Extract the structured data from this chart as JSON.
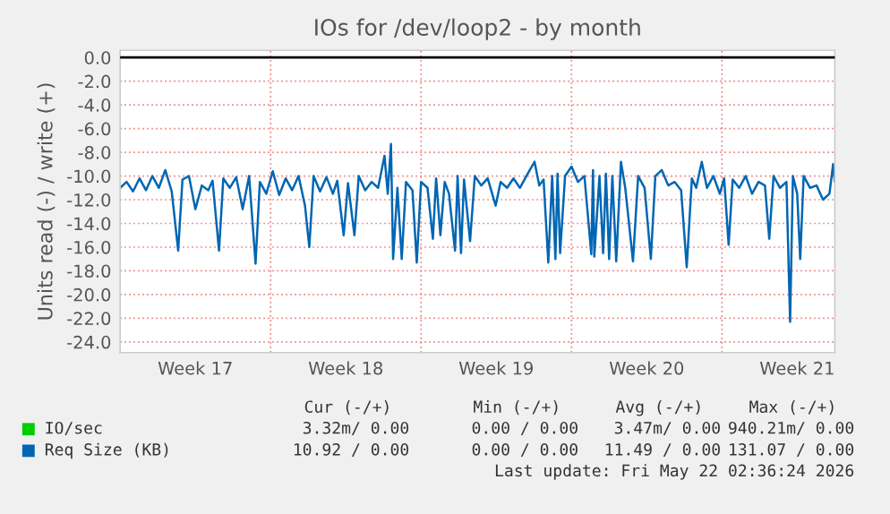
{
  "chart_data": {
    "type": "line",
    "title": "IOs for /dev/loop2 - by month",
    "ylabel": "Units read (-) / write (+)",
    "xlim": [
      "2026-04-20T00:00",
      "2026-05-23T06:00"
    ],
    "xticks": [
      {
        "value": "2026-04-20",
        "label": null
      },
      {
        "value": "2026-04-23T12:00",
        "label": "Week 17"
      },
      {
        "value": "2026-04-27",
        "label": null
      },
      {
        "value": "2026-04-30T12:00",
        "label": "Week 18"
      },
      {
        "value": "2026-05-04",
        "label": null
      },
      {
        "value": "2026-05-07T12:00",
        "label": "Week 19"
      },
      {
        "value": "2026-05-11",
        "label": null
      },
      {
        "value": "2026-05-14T12:00",
        "label": "Week 20"
      },
      {
        "value": "2026-05-18",
        "label": null
      },
      {
        "value": "2026-05-21T12:00",
        "label": "Week 21"
      }
    ],
    "ylim": [
      -24.9,
      0.6
    ],
    "yticks": [
      {
        "value": 0,
        "label": "0.0"
      },
      {
        "value": -2,
        "label": "-2.0"
      },
      {
        "value": -4,
        "label": "-4.0"
      },
      {
        "value": -6,
        "label": "-6.0"
      },
      {
        "value": -8,
        "label": "-8.0"
      },
      {
        "value": -10,
        "label": "-10.0"
      },
      {
        "value": -12,
        "label": "-12.0"
      },
      {
        "value": -14,
        "label": "-14.0"
      },
      {
        "value": -16,
        "label": "-16.0"
      },
      {
        "value": -18,
        "label": "-18.0"
      },
      {
        "value": -20,
        "label": "-20.0"
      },
      {
        "value": -22,
        "label": "-22.0"
      },
      {
        "value": -24,
        "label": "-24.0"
      }
    ],
    "grid": true,
    "legend": "bottom",
    "ref_lines": [
      {
        "axis": "y",
        "value": 0,
        "label": null,
        "color": "#000000"
      }
    ],
    "series": [
      {
        "name": "IO/sec",
        "color": "#00cc00"
      },
      {
        "name": "Req Size (KB)",
        "color": "#0066b3",
        "x": [
          "2026-04-20T00:00",
          "2026-04-20T07:12",
          "2026-04-20T14:24",
          "2026-04-20T21:36",
          "2026-04-21T04:48",
          "2026-04-21T12:00",
          "2026-04-21T19:12",
          "2026-04-22T02:24",
          "2026-04-22T09:36",
          "2026-04-22T16:48",
          "2026-04-22T21:36",
          "2026-04-23T04:48",
          "2026-04-23T12:00",
          "2026-04-23T19:12",
          "2026-04-24T02:24",
          "2026-04-24T07:12",
          "2026-04-24T14:24",
          "2026-04-24T19:12",
          "2026-04-25T02:24",
          "2026-04-25T09:36",
          "2026-04-25T16:48",
          "2026-04-26T00:00",
          "2026-04-26T07:12",
          "2026-04-26T12:00",
          "2026-04-26T19:12",
          "2026-04-27T02:24",
          "2026-04-27T09:36",
          "2026-04-27T16:48",
          "2026-04-28T00:00",
          "2026-04-28T07:12",
          "2026-04-28T14:24",
          "2026-04-28T19:12",
          "2026-04-29T00:00",
          "2026-04-29T07:12",
          "2026-04-29T14:24",
          "2026-04-29T21:36",
          "2026-04-30T02:24",
          "2026-04-30T09:36",
          "2026-04-30T14:24",
          "2026-04-30T21:36",
          "2026-05-01T02:24",
          "2026-05-01T09:36",
          "2026-05-01T16:48",
          "2026-05-02T00:00",
          "2026-05-02T07:12",
          "2026-05-02T10:48",
          "2026-05-02T14:24",
          "2026-05-02T16:48",
          "2026-05-02T21:36",
          "2026-05-03T02:24",
          "2026-05-03T07:12",
          "2026-05-03T14:24",
          "2026-05-03T19:12",
          "2026-05-04T00:00",
          "2026-05-04T07:12",
          "2026-05-04T13:12",
          "2026-05-04T16:48",
          "2026-05-04T21:36",
          "2026-05-05T02:24",
          "2026-05-05T07:12",
          "2026-05-05T13:55",
          "2026-05-05T16:48",
          "2026-05-05T20:38",
          "2026-05-06T00:00",
          "2026-05-06T06:43",
          "2026-05-06T12:00",
          "2026-05-06T19:12",
          "2026-05-07T02:24",
          "2026-05-07T11:17",
          "2026-05-07T16:48",
          "2026-05-08T00:00",
          "2026-05-08T07:12",
          "2026-05-08T14:24",
          "2026-05-08T21:36",
          "2026-05-09T06:43",
          "2026-05-09T12:00",
          "2026-05-09T16:48",
          "2026-05-09T22:05",
          "2026-05-10T02:24",
          "2026-05-10T06:00",
          "2026-05-10T08:24",
          "2026-05-10T11:17",
          "2026-05-10T16:48",
          "2026-05-11T00:00",
          "2026-05-11T07:12",
          "2026-05-11T14:24",
          "2026-05-11T22:05",
          "2026-05-12T00:00",
          "2026-05-12T01:26",
          "2026-05-12T07:12",
          "2026-05-12T11:17",
          "2026-05-12T14:24",
          "2026-05-12T18:00",
          "2026-05-12T21:36",
          "2026-05-13T01:55",
          "2026-05-13T07:12",
          "2026-05-13T12:00",
          "2026-05-13T20:38",
          "2026-05-14T02:24",
          "2026-05-14T09:36",
          "2026-05-14T16:34",
          "2026-05-14T21:36",
          "2026-05-15T04:48",
          "2026-05-15T12:00",
          "2026-05-15T19:12",
          "2026-05-16T02:24",
          "2026-05-16T08:38",
          "2026-05-16T14:24",
          "2026-05-16T19:12",
          "2026-05-17T01:26",
          "2026-05-17T07:12",
          "2026-05-17T14:24",
          "2026-05-17T21:36",
          "2026-05-18T02:24",
          "2026-05-18T07:26",
          "2026-05-18T12:00",
          "2026-05-18T19:12",
          "2026-05-19T02:24",
          "2026-05-19T09:36",
          "2026-05-19T16:48",
          "2026-05-20T00:00",
          "2026-05-20T04:48",
          "2026-05-20T09:36",
          "2026-05-20T16:48",
          "2026-05-21T00:00",
          "2026-05-21T04:05",
          "2026-05-21T07:12",
          "2026-05-21T12:00",
          "2026-05-21T15:22",
          "2026-05-21T19:12",
          "2026-05-22T02:24",
          "2026-05-22T09:36",
          "2026-05-22T16:48",
          "2026-05-23T00:00",
          "2026-05-23T04:05",
          "2026-05-23T06:00"
        ],
        "values": [
          -11,
          -10.5,
          -11.3,
          -10.2,
          -11.2,
          -10.0,
          -11.0,
          -9.5,
          -11.3,
          -16.3,
          -10.3,
          -10.0,
          -12.8,
          -10.8,
          -11.2,
          -10.4,
          -16.3,
          -10.2,
          -11.0,
          -10.1,
          -12.8,
          -10.0,
          -17.4,
          -10.5,
          -11.5,
          -9.6,
          -11.6,
          -10.2,
          -11.2,
          -10.0,
          -12.5,
          -16.0,
          -10.0,
          -11.3,
          -10.1,
          -11.5,
          -10.4,
          -15.0,
          -10.6,
          -15.0,
          -10.0,
          -11.2,
          -10.5,
          -11.0,
          -8.3,
          -11.5,
          -7.3,
          -17.0,
          -11.0,
          -17.0,
          -10.5,
          -11.2,
          -17.3,
          -10.5,
          -11.0,
          -15.3,
          -10.2,
          -15.0,
          -10.5,
          -11.5,
          -16.3,
          -10.0,
          -16.5,
          -10.3,
          -15.5,
          -10.0,
          -10.8,
          -10.2,
          -12.5,
          -10.5,
          -11.0,
          -10.2,
          -11.0,
          -10.0,
          -8.8,
          -10.8,
          -10.3,
          -17.3,
          -10.0,
          -17.0,
          -9.8,
          -16.5,
          -10.0,
          -9.2,
          -10.5,
          -10.0,
          -16.6,
          -9.5,
          -16.8,
          -10.0,
          -16.5,
          -9.8,
          -17.0,
          -10.0,
          -17.2,
          -8.8,
          -11.0,
          -17.2,
          -10.0,
          -11.0,
          -17.0,
          -10.0,
          -9.5,
          -10.8,
          -10.5,
          -11.2,
          -17.7,
          -10.2,
          -11.0,
          -8.8,
          -11.0,
          -10.0,
          -11.5,
          -10.2,
          -15.8,
          -10.3,
          -11.0,
          -10.0,
          -11.5,
          -10.5,
          -10.8,
          -15.3,
          -10.0,
          -11.0,
          -10.5,
          -22.3,
          -10.0,
          -11.5,
          -17.0,
          -10.0,
          -11.0,
          -10.8,
          -12.0,
          -11.5,
          -9.0,
          -10.5
        ]
      }
    ],
    "annotations": [
      "Cur (-/+)",
      "Min (-/+)",
      "Avg (-/+)",
      "Max (-/+)",
      "3.32m/ 0.00",
      "0.00 / 0.00",
      "3.47m/ 0.00",
      "940.21m/ 0.00",
      "10.92 / 0.00",
      "0.00 / 0.00",
      "11.49 / 0.00",
      "131.07 / 0.00",
      "Last update: Fri May 22 02:36:24 2026"
    ]
  }
}
